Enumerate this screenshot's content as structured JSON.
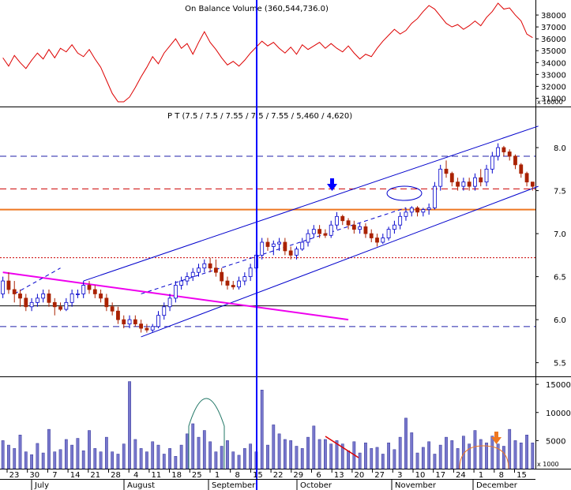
{
  "obv_panel": {
    "title": "On Balance Volume (360,544,736.0)",
    "scale_note": "x 10000",
    "ticks": [
      {
        "label": "31000",
        "v": 31000
      },
      {
        "label": "32000",
        "v": 32000
      },
      {
        "label": "33000",
        "v": 33000
      },
      {
        "label": "34000",
        "v": 34000
      },
      {
        "label": "35000",
        "v": 35000
      },
      {
        "label": "36000",
        "v": 36000
      },
      {
        "label": "37000",
        "v": 37000
      },
      {
        "label": "38000",
        "v": 38000
      }
    ]
  },
  "price_panel": {
    "title": "P T (7.5 / 7.5 / 7.55 / 7.5 / 7.55 / 5,460 / 4,620)",
    "ticks": [
      {
        "label": "5.5",
        "v": 5.5
      },
      {
        "label": "6.0",
        "v": 6.0
      },
      {
        "label": "6.5",
        "v": 6.5
      },
      {
        "label": "7.0",
        "v": 7.0
      },
      {
        "label": "7.5",
        "v": 7.5
      },
      {
        "label": "8.0",
        "v": 8.0
      }
    ]
  },
  "volume_panel": {
    "scale_note": "x 1000",
    "ticks": [
      {
        "label": "5000",
        "v": 5000
      },
      {
        "label": "10000",
        "v": 10000
      },
      {
        "label": "15000",
        "v": 15000
      }
    ]
  },
  "x_axis": {
    "day_labels": [
      "23",
      "30",
      "7",
      "14",
      "21",
      "28",
      "4",
      "11",
      "18",
      "25",
      "1",
      "8",
      "15",
      "22",
      "29",
      "6",
      "13",
      "20",
      "27",
      "3",
      "10",
      "17",
      "24",
      "1",
      "8",
      "15"
    ],
    "month_labels": [
      "July",
      "August",
      "September",
      "October",
      "November",
      "December"
    ]
  },
  "colors": {
    "up_candle": "#0000cc",
    "down_candle": "#aa2200",
    "obv_line": "#dd0000",
    "volume_bar": "#7777cc",
    "channel": "#0000cc",
    "trendline": "#ee00ee",
    "support": "#ee7722",
    "marker_vertical": "#0000ff"
  },
  "chart_data": [
    {
      "type": "line",
      "title": "On Balance Volume (360,544,736.0)",
      "ylim": [
        30500,
        39000
      ],
      "series": [
        {
          "values": [
            34400,
            33700,
            34600,
            34000,
            33500,
            34200,
            34800,
            34300,
            35100,
            34400,
            35200,
            34900,
            35500,
            34800,
            34500,
            35100,
            34300,
            33600,
            32500,
            31400,
            30700,
            30700,
            31100,
            31900,
            32800,
            33600,
            34500,
            33900,
            34800,
            35400,
            36000,
            35200,
            35600,
            34700,
            35700,
            36600,
            35700,
            35100,
            34400,
            33800,
            34100,
            33700,
            34200,
            34800,
            35300,
            35800,
            35400,
            35700,
            35200,
            34800,
            35300,
            34700,
            35500,
            35100,
            35400,
            35700,
            35200,
            35600,
            35200,
            34900,
            35400,
            34800,
            34300,
            34700,
            34500,
            35200,
            35800,
            36300,
            36800,
            36400,
            36700,
            37300,
            37700,
            38300,
            38800,
            38500,
            37900,
            37300,
            37000,
            37200,
            36800,
            37100,
            37500,
            37100,
            37800,
            38300,
            39000,
            38500,
            38600,
            38000,
            37500,
            36400,
            36100
          ]
        }
      ]
    },
    {
      "type": "candlestick",
      "title": "P T (7.5 / 7.5 / 7.55 / 7.5 / 7.55 / 5,460 / 4,620)",
      "ylim": [
        5.35,
        8.45
      ],
      "x_unit": "trading day index (0 = ~Jun 20, 92 = ~Dec 10)",
      "ohlc": [
        [
          6.3,
          6.5,
          6.25,
          6.45
        ],
        [
          6.45,
          6.55,
          6.3,
          6.35
        ],
        [
          6.35,
          6.45,
          6.2,
          6.3
        ],
        [
          6.3,
          6.35,
          6.15,
          6.25
        ],
        [
          6.25,
          6.3,
          6.1,
          6.15
        ],
        [
          6.15,
          6.25,
          6.1,
          6.2
        ],
        [
          6.2,
          6.3,
          6.15,
          6.25
        ],
        [
          6.25,
          6.35,
          6.2,
          6.3
        ],
        [
          6.3,
          6.35,
          6.15,
          6.2
        ],
        [
          6.2,
          6.25,
          6.05,
          6.15
        ],
        [
          6.15,
          6.2,
          6.1,
          6.12
        ],
        [
          6.12,
          6.25,
          6.1,
          6.2
        ],
        [
          6.2,
          6.35,
          6.15,
          6.3
        ],
        [
          6.3,
          6.35,
          6.25,
          6.3
        ],
        [
          6.3,
          6.45,
          6.25,
          6.4
        ],
        [
          6.4,
          6.45,
          6.3,
          6.35
        ],
        [
          6.35,
          6.4,
          6.25,
          6.3
        ],
        [
          6.3,
          6.35,
          6.2,
          6.25
        ],
        [
          6.25,
          6.3,
          6.1,
          6.15
        ],
        [
          6.15,
          6.2,
          6.05,
          6.1
        ],
        [
          6.1,
          6.15,
          5.95,
          6.0
        ],
        [
          6.0,
          6.05,
          5.9,
          5.95
        ],
        [
          5.95,
          6.05,
          5.9,
          6.0
        ],
        [
          6.0,
          6.05,
          5.92,
          5.95
        ],
        [
          5.95,
          6.0,
          5.85,
          5.9
        ],
        [
          5.9,
          5.95,
          5.85,
          5.88
        ],
        [
          5.88,
          5.95,
          5.85,
          5.92
        ],
        [
          5.92,
          6.1,
          5.9,
          6.05
        ],
        [
          6.05,
          6.2,
          6.0,
          6.15
        ],
        [
          6.15,
          6.3,
          6.1,
          6.25
        ],
        [
          6.25,
          6.45,
          6.2,
          6.4
        ],
        [
          6.4,
          6.5,
          6.35,
          6.45
        ],
        [
          6.45,
          6.55,
          6.4,
          6.5
        ],
        [
          6.5,
          6.6,
          6.45,
          6.55
        ],
        [
          6.55,
          6.65,
          6.5,
          6.6
        ],
        [
          6.6,
          6.7,
          6.55,
          6.65
        ],
        [
          6.65,
          6.72,
          6.55,
          6.6
        ],
        [
          6.6,
          6.7,
          6.5,
          6.55
        ],
        [
          6.55,
          6.6,
          6.4,
          6.45
        ],
        [
          6.45,
          6.5,
          6.35,
          6.4
        ],
        [
          6.4,
          6.45,
          6.35,
          6.38
        ],
        [
          6.38,
          6.5,
          6.35,
          6.45
        ],
        [
          6.45,
          6.55,
          6.4,
          6.5
        ],
        [
          6.5,
          6.65,
          6.45,
          6.6
        ],
        [
          6.6,
          6.8,
          6.55,
          6.75
        ],
        [
          6.75,
          6.95,
          6.7,
          6.9
        ],
        [
          6.9,
          6.95,
          6.8,
          6.85
        ],
        [
          6.85,
          6.92,
          6.75,
          6.88
        ],
        [
          6.88,
          6.95,
          6.8,
          6.9
        ],
        [
          6.9,
          6.95,
          6.75,
          6.8
        ],
        [
          6.8,
          6.85,
          6.7,
          6.75
        ],
        [
          6.75,
          6.85,
          6.7,
          6.82
        ],
        [
          6.82,
          6.95,
          6.8,
          6.9
        ],
        [
          6.9,
          7.05,
          6.85,
          7.0
        ],
        [
          7.0,
          7.1,
          6.95,
          7.05
        ],
        [
          7.05,
          7.1,
          6.95,
          7.0
        ],
        [
          7.0,
          7.05,
          6.95,
          6.98
        ],
        [
          6.98,
          7.15,
          6.95,
          7.1
        ],
        [
          7.1,
          7.25,
          7.05,
          7.2
        ],
        [
          7.2,
          7.22,
          7.1,
          7.15
        ],
        [
          7.15,
          7.18,
          7.05,
          7.1
        ],
        [
          7.1,
          7.15,
          7.0,
          7.05
        ],
        [
          7.05,
          7.12,
          7.0,
          7.08
        ],
        [
          7.08,
          7.12,
          6.95,
          7.0
        ],
        [
          7.0,
          7.05,
          6.9,
          6.95
        ],
        [
          6.95,
          7.0,
          6.85,
          6.9
        ],
        [
          6.9,
          7.0,
          6.88,
          6.95
        ],
        [
          6.95,
          7.08,
          6.92,
          7.05
        ],
        [
          7.05,
          7.15,
          7.0,
          7.1
        ],
        [
          7.1,
          7.25,
          7.05,
          7.2
        ],
        [
          7.2,
          7.3,
          7.15,
          7.25
        ],
        [
          7.25,
          7.32,
          7.2,
          7.3
        ],
        [
          7.3,
          7.32,
          7.2,
          7.25
        ],
        [
          7.25,
          7.3,
          7.2,
          7.28
        ],
        [
          7.28,
          7.35,
          7.22,
          7.3
        ],
        [
          7.3,
          7.6,
          7.28,
          7.55
        ],
        [
          7.55,
          7.8,
          7.5,
          7.75
        ],
        [
          7.75,
          7.85,
          7.65,
          7.7
        ],
        [
          7.7,
          7.72,
          7.55,
          7.6
        ],
        [
          7.6,
          7.65,
          7.5,
          7.55
        ],
        [
          7.55,
          7.65,
          7.5,
          7.6
        ],
        [
          7.6,
          7.65,
          7.5,
          7.55
        ],
        [
          7.55,
          7.7,
          7.5,
          7.65
        ],
        [
          7.65,
          7.75,
          7.55,
          7.6
        ],
        [
          7.6,
          7.8,
          7.55,
          7.75
        ],
        [
          7.75,
          7.95,
          7.7,
          7.9
        ],
        [
          7.9,
          8.05,
          7.85,
          8.0
        ],
        [
          8.0,
          8.02,
          7.9,
          7.95
        ],
        [
          7.95,
          7.98,
          7.85,
          7.9
        ],
        [
          7.9,
          7.92,
          7.75,
          7.8
        ],
        [
          7.8,
          7.82,
          7.65,
          7.7
        ],
        [
          7.7,
          7.72,
          7.55,
          7.6
        ],
        [
          7.6,
          7.6,
          7.5,
          7.55
        ]
      ],
      "trendlines": [
        {
          "name": "channel-upper",
          "color": "#0000cc",
          "x": [
            14,
            93
          ],
          "y": [
            6.45,
            8.25
          ]
        },
        {
          "name": "channel-lower",
          "color": "#0000cc",
          "x": [
            24,
            93
          ],
          "y": [
            5.8,
            7.55
          ]
        },
        {
          "name": "channel-mid",
          "color": "#0000cc",
          "x": [
            24,
            70
          ],
          "y": [
            6.3,
            7.3
          ],
          "dashed": true
        },
        {
          "name": "downtrend",
          "color": "#ee00ee",
          "x": [
            0,
            60
          ],
          "y": [
            6.55,
            6.0
          ]
        },
        {
          "name": "early-up",
          "color": "#0000cc",
          "x": [
            2,
            10
          ],
          "y": [
            6.3,
            6.6
          ],
          "dashed": true
        }
      ],
      "levels": [
        {
          "name": "support-7.3",
          "y": 7.28,
          "color": "#ee7722",
          "style": "solid"
        },
        {
          "name": "level-7.52",
          "y": 7.52,
          "color": "#cc0000",
          "style": "dashed"
        },
        {
          "name": "level-7.9",
          "y": 7.9,
          "color": "#2222aa",
          "style": "dashed"
        },
        {
          "name": "level-6.72",
          "y": 6.72,
          "color": "#cc0000",
          "style": "dotted"
        },
        {
          "name": "level-6.16",
          "y": 6.16,
          "color": "#000000",
          "style": "solid"
        },
        {
          "name": "level-5.92",
          "y": 5.92,
          "color": "#2222aa",
          "style": "dashed"
        }
      ]
    },
    {
      "type": "bar",
      "title": "",
      "ylim": [
        0,
        16000
      ],
      "values": [
        5000,
        4200,
        3600,
        6000,
        3000,
        2500,
        4500,
        2800,
        7000,
        3000,
        3400,
        5200,
        4200,
        5400,
        3200,
        6800,
        3600,
        3000,
        5600,
        3000,
        2600,
        4400,
        15500,
        5200,
        3600,
        3000,
        4800,
        4200,
        2600,
        3600,
        2200,
        4200,
        6200,
        8000,
        5600,
        6800,
        4800,
        3000,
        4000,
        5000,
        3000,
        2400,
        3600,
        4400,
        3000,
        14000,
        4200,
        7800,
        6200,
        5200,
        5000,
        4000,
        3600,
        5600,
        7600,
        5200,
        5200,
        4400,
        5000,
        4400,
        3200,
        4800,
        2800,
        4600,
        3600,
        3800,
        2600,
        4600,
        3400,
        5600,
        9000,
        6400,
        2800,
        3800,
        4800,
        2600,
        4200,
        5600,
        5000,
        3600,
        5800,
        4400,
        6800,
        5200,
        4600,
        5800,
        4400,
        4000,
        7000,
        5000,
        4600,
        6000,
        4600
      ]
    }
  ]
}
